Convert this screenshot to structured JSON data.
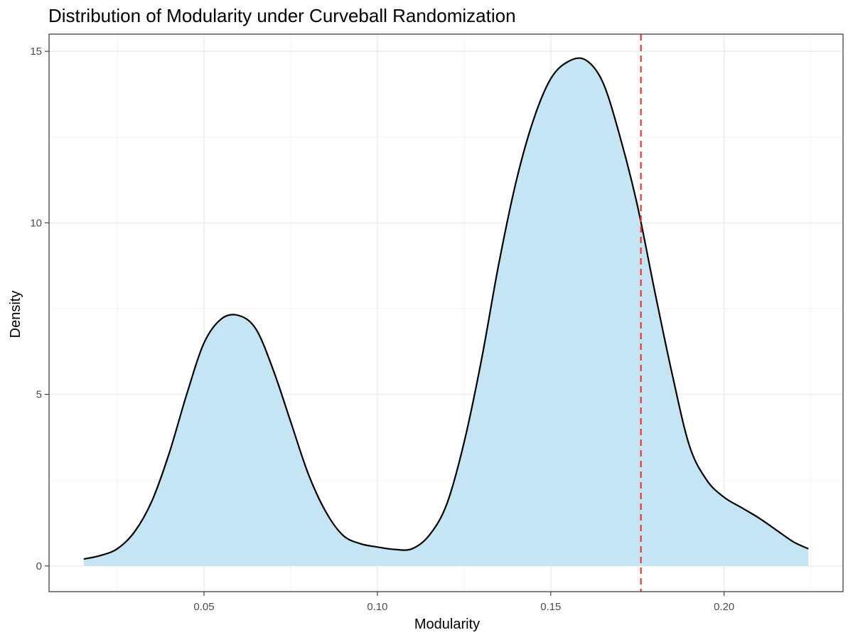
{
  "chart_data": {
    "type": "area",
    "title": "Distribution of Modularity under Curveball Randomization",
    "xlabel": "Modularity",
    "ylabel": "Density",
    "xlim": [
      0.0053,
      0.2343
    ],
    "ylim": [
      -0.75,
      15.5
    ],
    "x_ticks": [
      0.05,
      0.1,
      0.15,
      0.2
    ],
    "x_tick_labels": [
      "0.05",
      "0.10",
      "0.15",
      "0.20"
    ],
    "y_ticks": [
      0,
      5,
      10,
      15
    ],
    "y_tick_labels": [
      "0",
      "5",
      "10",
      "15"
    ],
    "grid": true,
    "legend": "none",
    "fill_color": "#c5e5f4",
    "line_color": "#000000",
    "reference_line": {
      "x": 0.176,
      "color": "#ee3333",
      "style": "dashed"
    },
    "series": [
      {
        "x": [
          0.0153,
          0.02,
          0.025,
          0.03,
          0.035,
          0.04,
          0.045,
          0.05,
          0.055,
          0.06,
          0.065,
          0.07,
          0.075,
          0.08,
          0.085,
          0.09,
          0.095,
          0.1,
          0.105,
          0.11,
          0.115,
          0.12,
          0.125,
          0.13,
          0.135,
          0.14,
          0.145,
          0.15,
          0.155,
          0.16,
          0.165,
          0.17,
          0.175,
          0.18,
          0.185,
          0.19,
          0.195,
          0.2,
          0.205,
          0.21,
          0.215,
          0.22,
          0.2243
        ],
        "y": [
          0.2,
          0.3,
          0.5,
          1.0,
          1.9,
          3.3,
          5.0,
          6.5,
          7.2,
          7.3,
          6.9,
          5.7,
          4.2,
          2.7,
          1.6,
          0.9,
          0.65,
          0.55,
          0.48,
          0.5,
          0.9,
          1.8,
          3.6,
          6.0,
          8.8,
          11.2,
          13.0,
          14.2,
          14.7,
          14.75,
          14.1,
          12.5,
          10.5,
          8.0,
          5.6,
          3.5,
          2.5,
          2.0,
          1.7,
          1.4,
          1.05,
          0.7,
          0.5
        ]
      }
    ]
  }
}
